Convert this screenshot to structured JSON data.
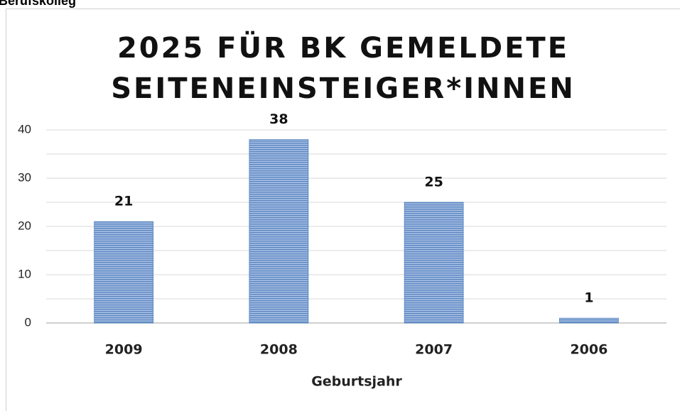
{
  "header": "Berufskolleg",
  "chart_data": {
    "type": "bar",
    "title": [
      "2025 FÜR BK GEMELDETE",
      "SEITENEINSTEIGER*INNEN"
    ],
    "x_label": "Geburtsjahr",
    "categories": [
      "2009",
      "2008",
      "2007",
      "2006"
    ],
    "values": [
      21,
      38,
      25,
      1
    ],
    "color": "#4f81bd",
    "ylim": [
      0,
      40
    ],
    "yticks": [
      0,
      10,
      20,
      30,
      40
    ],
    "minor_yticks": [
      5,
      15,
      25,
      35
    ],
    "grid": true
  }
}
